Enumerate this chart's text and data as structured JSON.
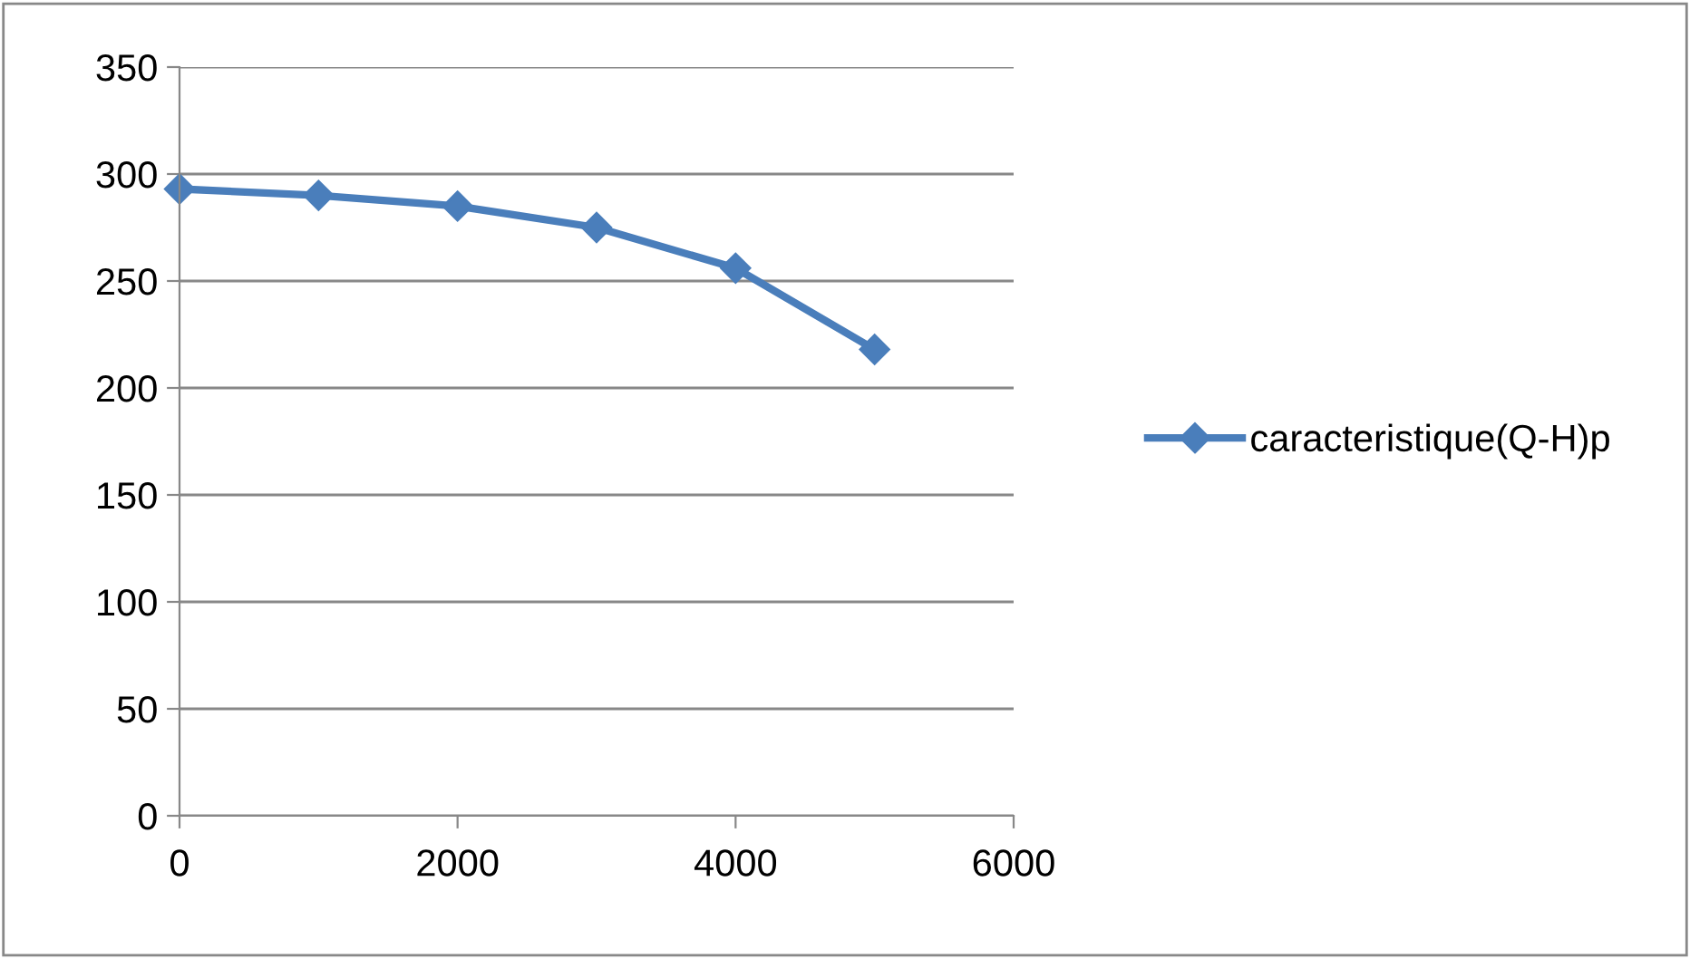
{
  "chart_data": {
    "type": "line",
    "x": [
      0,
      1000,
      2000,
      3000,
      4000,
      5000
    ],
    "series": [
      {
        "name": "caracteristique(Q-H)p",
        "color": "#4a7ebb",
        "values": [
          293,
          290,
          285,
          275,
          256,
          218
        ]
      }
    ],
    "xlim": [
      0,
      6000
    ],
    "xticks": [
      0,
      2000,
      4000,
      6000
    ],
    "ylim": [
      0,
      350
    ],
    "yticks": [
      0,
      50,
      100,
      150,
      200,
      250,
      300,
      350
    ],
    "grid": "y",
    "legend": "right",
    "marker": "diamond",
    "line_style": "solid"
  }
}
